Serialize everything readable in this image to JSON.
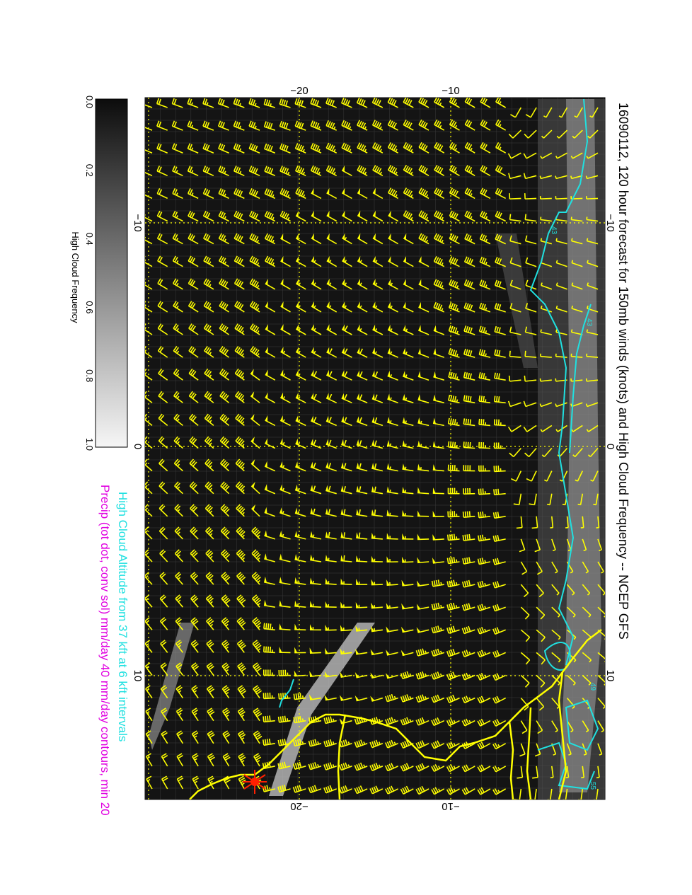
{
  "title": "16090112, 120 hour forecast for 150mb winds (knots) and High Cloud Frequency -- NCEP GFS",
  "caption_cloud_altitude": "High Cloud Altitude from 37 kft at 6 kft intervals",
  "caption_precip": "Precip (tot dot, conv sol) mm/day 40 mm/day contours, min 20",
  "colorbar": {
    "title": "High Cloud Frequency",
    "ticks": [
      "0.0",
      "0.2",
      "0.4",
      "0.6",
      "0.8",
      "1.0"
    ]
  },
  "axes": {
    "top_ticks": [
      "−20",
      "−10"
    ],
    "bottom_ticks": [
      "−20",
      "−10"
    ],
    "left_ticks": [
      "−10",
      "0",
      "10"
    ],
    "right_ticks": [
      "−10",
      "0",
      "10"
    ]
  },
  "contour_labels": [
    "43",
    "43",
    "49",
    "55"
  ],
  "colors": {
    "background": "#ffffff",
    "map_background": "#141414",
    "wind_barbs": "#ffff00",
    "coastline": "#ffff00",
    "cloud_altitude_contours": "#20e0e0",
    "precip_caption": "#e000e0",
    "cloud_caption": "#20e0e0",
    "storm_marker": "#ff2000"
  },
  "wind_barbs": {
    "grid_columns": 30,
    "grid_rows": 31,
    "regions": [
      {
        "region": "western",
        "flow": "northerly-northwesterly",
        "speed_knots": "10-20"
      },
      {
        "region": "central",
        "flow": "easterly",
        "speed_knots": "30-60"
      },
      {
        "region": "eastern",
        "flow": "easterly",
        "speed_knots": "40-60"
      },
      {
        "region": "coastal",
        "flow": "variable",
        "speed_knots": "5-15"
      }
    ]
  },
  "features": [
    "coastline",
    "country-borders",
    "storm-symbol",
    "dotted-lat-lon-grid"
  ]
}
